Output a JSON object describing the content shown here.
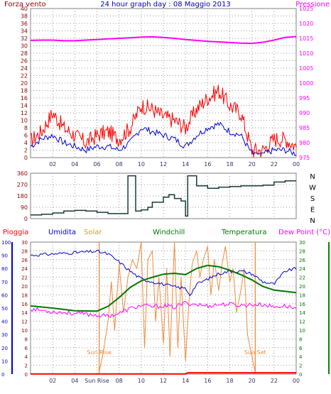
{
  "colors": {
    "panel_bg": "#ffffff",
    "frame": "#808080",
    "grid": "#9a9a9a",
    "label": "#8b0000",
    "wind": "#ff0000",
    "gust": "#0000dd",
    "pressure": "#ff00ff",
    "direction": "#1a3a3a",
    "rain": "#ff0000",
    "humidity": "#0000cc",
    "solar": "#f08a3c",
    "temperature": "#007700",
    "dewpoint": "#ff00ff",
    "outer": "#008800",
    "blue_axis": "#0000cc"
  },
  "chart_data": [
    {
      "type": "line",
      "title": "24 hour graph day : 08 Maggio 2013",
      "left_title": "Forza vento",
      "right_title": "Pressione",
      "x_ticks": [
        "02",
        "04",
        "06",
        "08",
        "10",
        "12",
        "14",
        "16",
        "18",
        "20",
        "22",
        "00"
      ],
      "ylim": [
        0,
        40
      ],
      "y_ticks": [
        "0",
        "2",
        "4",
        "6",
        "8",
        "10",
        "12",
        "14",
        "16",
        "18",
        "20",
        "22",
        "24",
        "26",
        "28",
        "30",
        "32",
        "34",
        "36",
        "38",
        "40"
      ],
      "y2lim": [
        975,
        1025
      ],
      "y2_ticks": [
        "975",
        "980",
        "985",
        "990",
        "995",
        "1000",
        "1005",
        "1010",
        "1015",
        "1020",
        "1025"
      ],
      "series": [
        {
          "key": "wind",
          "x": [
            0,
            1,
            2,
            3,
            4,
            5,
            6,
            7,
            8,
            9,
            10,
            11,
            12,
            13,
            14,
            15,
            16,
            17,
            18,
            19,
            20,
            21,
            22,
            23,
            24
          ],
          "y": [
            3,
            5,
            6,
            4,
            3,
            2,
            3,
            3,
            2,
            4,
            8,
            7,
            6,
            5,
            3,
            6,
            8,
            9,
            7,
            6,
            1,
            1,
            2,
            2,
            1
          ]
        },
        {
          "key": "gust",
          "x": [
            0,
            1,
            2,
            3,
            4,
            5,
            6,
            7,
            8,
            9,
            10,
            11,
            12,
            13,
            14,
            15,
            16,
            17,
            18,
            19,
            20,
            21,
            22,
            23,
            24
          ],
          "y": [
            4.5,
            7,
            12,
            8,
            6,
            4,
            6,
            7,
            5,
            8,
            14,
            13,
            11,
            10,
            8,
            13,
            16,
            18,
            14,
            12,
            2,
            2,
            5,
            5,
            3
          ]
        },
        {
          "key": "pressure",
          "x": [
            0,
            1,
            2,
            3,
            4,
            5,
            6,
            7,
            8,
            9,
            10,
            11,
            12,
            13,
            14,
            15,
            16,
            17,
            18,
            19,
            20,
            21,
            22,
            23,
            24
          ],
          "y": [
            1014.3,
            1014.4,
            1014.4,
            1014.2,
            1014.2,
            1014.4,
            1014.6,
            1014.8,
            1015.0,
            1015.2,
            1015.4,
            1015.5,
            1015.3,
            1015.0,
            1014.6,
            1014.3,
            1014.0,
            1013.8,
            1013.6,
            1013.4,
            1013.3,
            1013.7,
            1014.4,
            1015.3,
            1015.6
          ]
        }
      ]
    },
    {
      "type": "line",
      "title": "",
      "y_ticks": [
        "0",
        "90",
        "180",
        "270",
        "360"
      ],
      "ylim": [
        0,
        360
      ],
      "right_labels": [
        "N",
        "W",
        "S",
        "E",
        "N"
      ],
      "series": [
        {
          "key": "direction",
          "x": [
            0,
            1,
            2,
            3,
            4,
            5,
            6,
            7,
            8,
            8.8,
            9,
            9.5,
            10,
            10.6,
            11,
            12,
            12.5,
            13,
            13.6,
            14,
            14.2,
            15,
            16,
            17,
            18,
            19,
            20,
            21,
            22,
            23,
            24
          ],
          "y": [
            30,
            35,
            45,
            60,
            65,
            60,
            50,
            40,
            40,
            340,
            340,
            60,
            70,
            90,
            130,
            170,
            190,
            160,
            140,
            20,
            340,
            260,
            240,
            250,
            255,
            260,
            260,
            265,
            290,
            300,
            300
          ]
        }
      ]
    },
    {
      "type": "line",
      "title": "",
      "labels": [
        "Pioggia",
        "Umidita",
        "Solar",
        "Windchill",
        "Temperatura",
        "Dew Point (°C)"
      ],
      "x_ticks": [
        "02",
        "04",
        "Sun Rise",
        "08",
        "10",
        "12",
        "14",
        "16",
        "18",
        "20",
        "22",
        "00"
      ],
      "annotations": [
        "Sun Rise",
        "Sun Set"
      ],
      "ylim": [
        0,
        30
      ],
      "y_ticks": [
        "0",
        "2",
        "4",
        "6",
        "8",
        "10",
        "12",
        "14",
        "16",
        "18",
        "20",
        "22",
        "24",
        "26",
        "28",
        "30"
      ],
      "y_outer_ticks": [
        "0",
        "10",
        "20",
        "30",
        "40",
        "50",
        "60",
        "70",
        "80",
        "90",
        "100"
      ],
      "y_blue_ticks": [
        "0",
        "2",
        "4",
        "6",
        "8",
        "10",
        "12",
        "14",
        "16",
        "18",
        "20",
        "22",
        "24",
        "26",
        "28",
        "30"
      ],
      "sunrise_hour": 6.2,
      "sunset_hour": 20.3,
      "series": [
        {
          "key": "humidity",
          "x": [
            0,
            2,
            4,
            6,
            7,
            8,
            9,
            10,
            11,
            12,
            13,
            14,
            14.4,
            15,
            16,
            17,
            18,
            19,
            20,
            21,
            22,
            23,
            24
          ],
          "y": [
            90,
            91,
            92,
            93,
            91,
            85,
            78,
            72,
            70,
            68,
            66,
            65,
            60,
            68,
            72,
            76,
            78,
            78,
            76,
            70,
            68,
            78,
            80
          ]
        },
        {
          "key": "temperature",
          "x": [
            0,
            2,
            4,
            6,
            7,
            8,
            9,
            10,
            11,
            12,
            13,
            14,
            15,
            16,
            17,
            18,
            19,
            20,
            21,
            22,
            23,
            24
          ],
          "y": [
            15.5,
            15.0,
            14.4,
            14.3,
            15.4,
            17.4,
            19.7,
            21.2,
            22.0,
            22.7,
            22.9,
            22.6,
            24.0,
            24.7,
            24.4,
            23.6,
            22.6,
            21.4,
            19.9,
            19.1,
            18.8,
            18.5
          ]
        },
        {
          "key": "dewpoint",
          "x": [
            0,
            2,
            4,
            6,
            7,
            8,
            9,
            10,
            11,
            12,
            13,
            14,
            15,
            16,
            17,
            18,
            19,
            20,
            21,
            22,
            23,
            24
          ],
          "y": [
            14.8,
            14.2,
            13.8,
            13.4,
            13.2,
            13.8,
            14.9,
            15.6,
            15.3,
            15.5,
            15.2,
            16.2,
            15.8,
            15.5,
            15.8,
            15.9,
            15.6,
            15.8,
            15.8,
            15.3,
            15.5,
            14.9
          ]
        },
        {
          "key": "solar",
          "x": [
            6.2,
            6.5,
            7,
            7.3,
            7.6,
            8,
            8.4,
            8.8,
            9.2,
            9.6,
            10,
            10.3,
            10.6,
            11,
            11.3,
            11.6,
            12,
            12.3,
            12.6,
            13,
            13.3,
            13.6,
            14,
            14.3,
            14.6,
            15,
            15.3,
            15.6,
            16,
            16.3,
            16.6,
            17,
            17.3,
            17.6,
            18,
            18.3,
            18.6,
            19,
            19.3,
            19.6,
            20,
            20.3
          ],
          "y": [
            0.5,
            4,
            12,
            21,
            10,
            25,
            14,
            22,
            26,
            24,
            30,
            6,
            26,
            28,
            12,
            22,
            7,
            24,
            4,
            30,
            6,
            22,
            3,
            16,
            25,
            28,
            22,
            26,
            29,
            18,
            26,
            19,
            25,
            29,
            21,
            24,
            14,
            19,
            24,
            9,
            4,
            0.5
          ]
        },
        {
          "key": "rain",
          "x": [
            0,
            14,
            14.2,
            24
          ],
          "y": [
            0.05,
            0.05,
            0.3,
            0.3
          ]
        }
      ]
    }
  ]
}
